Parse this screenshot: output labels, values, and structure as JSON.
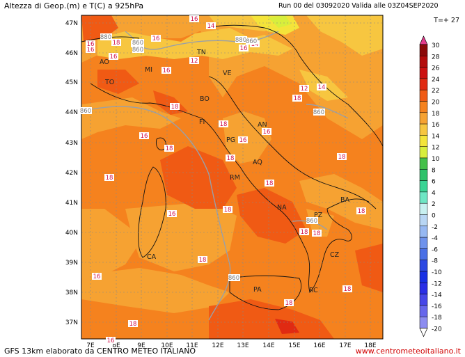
{
  "header": {
    "title": "Altezza di Geop.(m) e T(C) a 925hPa",
    "run_info": "Run 00 del 03092020  Valida alle 03Z04SEP2020",
    "timestep": "T=+ 27"
  },
  "footer": {
    "credit": "GFS 13km elaborato da CENTRO METEO ITALIANO",
    "website": "www.centrometeoitaliano.it"
  },
  "axes": {
    "lat_labels": [
      "47N",
      "46N",
      "45N",
      "44N",
      "43N",
      "42N",
      "41N",
      "40N",
      "39N",
      "38N",
      "37N"
    ],
    "lon_labels": [
      "7E",
      "8E",
      "9E",
      "10E",
      "11E",
      "12E",
      "13E",
      "14E",
      "15E",
      "16E",
      "17E",
      "18E"
    ]
  },
  "legend": {
    "values": [
      "30",
      "28",
      "26",
      "24",
      "22",
      "20",
      "18",
      "16",
      "14",
      "12",
      "10",
      "8",
      "6",
      "4",
      "2",
      "0",
      "-2",
      "-4",
      "-6",
      "-8",
      "-10",
      "-12",
      "-14",
      "-16",
      "-18",
      "-20"
    ],
    "colors": [
      "#e23c8c",
      "#8b0a0a",
      "#b30c0c",
      "#cc1010",
      "#e02a12",
      "#f05a14",
      "#f5821e",
      "#f6a232",
      "#f7c640",
      "#f4e43a",
      "#d8ee3c",
      "#44c04a",
      "#2ec26a",
      "#3ad494",
      "#6fe6c4",
      "#c8f0f0",
      "#b8d6f4",
      "#96b8f2",
      "#6e92ec",
      "#4a70e6",
      "#2b48e2",
      "#1830e4",
      "#2a2ee6",
      "#4646e8",
      "#6666ec",
      "#8c8cf0"
    ]
  },
  "cities": [
    "AO",
    "TO",
    "MI",
    "TN",
    "VE",
    "BO",
    "FI",
    "AN",
    "PG",
    "AQ",
    "RM",
    "NA",
    "BA",
    "PZ",
    "CZ",
    "PA",
    "RC",
    "CA"
  ],
  "contour_labels": {
    "temperature": [
      "16",
      "16",
      "14",
      "14",
      "16",
      "12",
      "14",
      "16",
      "16",
      "16",
      "12",
      "14",
      "18",
      "16",
      "18",
      "16",
      "18",
      "18",
      "16",
      "18",
      "18",
      "18",
      "18",
      "18",
      "16",
      "18",
      "16",
      "18",
      "18",
      "16",
      "18",
      "16",
      "18",
      "18",
      "18",
      "18"
    ],
    "geopotential": [
      "880",
      "860",
      "860",
      "880",
      "860",
      "860",
      "860",
      "860",
      "860"
    ]
  }
}
